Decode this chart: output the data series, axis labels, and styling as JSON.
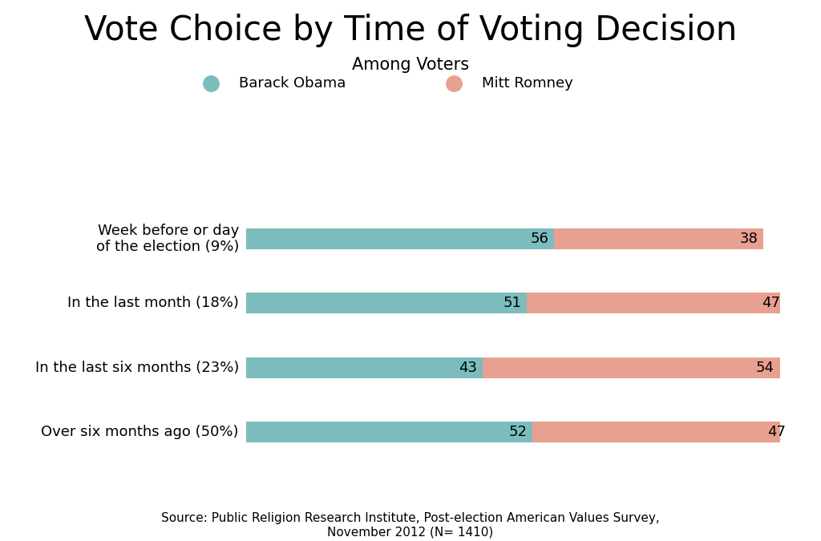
{
  "title": "Vote Choice by Time of Voting Decision",
  "subtitle": "Among Voters",
  "categories": [
    "Week before or day\nof the election (9%)",
    "In the last month (18%)",
    "In the last six months (23%)",
    "Over six months ago (50%)"
  ],
  "obama_values": [
    56,
    51,
    43,
    52
  ],
  "romney_values": [
    38,
    47,
    54,
    47
  ],
  "obama_color": "#7cbcbc",
  "romney_color": "#e8a090",
  "obama_label": "Barack Obama",
  "romney_label": "Mitt Romney",
  "legend_bg_color": "#e4e4e4",
  "background_color": "#ffffff",
  "source_text": "Source: Public Religion Research Institute, Post-election American Values Survey,\nNovember 2012 (N= 1410)",
  "title_fontsize": 30,
  "subtitle_fontsize": 15,
  "label_fontsize": 13,
  "bar_label_fontsize": 13,
  "source_fontsize": 11,
  "legend_fontsize": 13
}
